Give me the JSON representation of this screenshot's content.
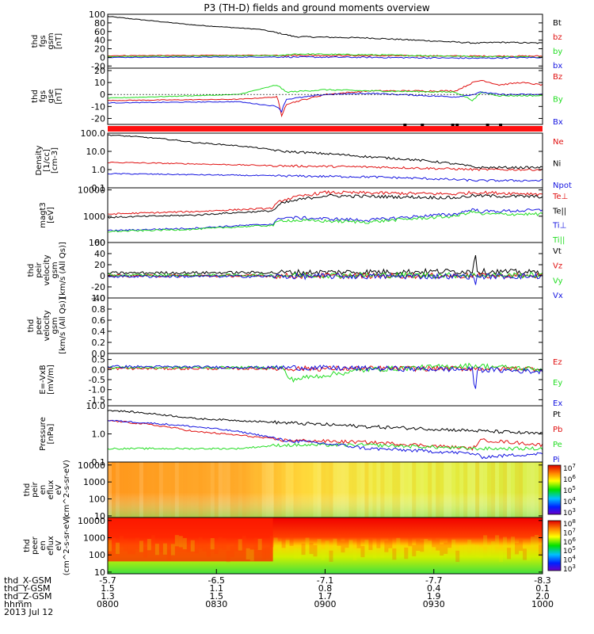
{
  "title": "P3 (TH-D) fields and ground moments overview",
  "colors": {
    "black": "#000000",
    "red": "#e01010",
    "green": "#22dd22",
    "blue": "#1515e0",
    "flag": "#ff1010"
  },
  "chart_data": [
    {
      "type": "line",
      "id": "fgs_gsm",
      "ylabel": [
        "thd",
        "fgs",
        "gsm",
        "[nT]"
      ],
      "ylim": [
        -25,
        100
      ],
      "ticks": [
        -20,
        0,
        20,
        40,
        60,
        80,
        100
      ],
      "tick_labels": [
        "-20",
        "0",
        "20",
        "40",
        "60",
        "80",
        "100"
      ],
      "series": [
        {
          "name": "Bt",
          "color": "#000000",
          "x": [
            0.0,
            0.2,
            0.35,
            0.4,
            0.43,
            0.6,
            0.75,
            0.85,
            0.9,
            1.0
          ],
          "y": [
            95,
            75,
            65,
            55,
            48,
            45,
            38,
            33,
            35,
            33
          ]
        },
        {
          "name": "bz",
          "color": "#e01010",
          "x": [
            0.0,
            0.4,
            0.6,
            0.85,
            1.0
          ],
          "y": [
            4,
            5,
            4,
            3,
            3
          ]
        },
        {
          "name": "by",
          "color": "#22dd22",
          "x": [
            0.0,
            0.4,
            0.43,
            0.6,
            0.85,
            1.0
          ],
          "y": [
            2,
            4,
            8,
            6,
            2,
            1
          ]
        },
        {
          "name": "bx",
          "color": "#1515e0",
          "x": [
            0.0,
            0.4,
            0.6,
            0.85,
            1.0
          ],
          "y": [
            0,
            1,
            0,
            -2,
            0
          ]
        }
      ]
    },
    {
      "type": "line",
      "id": "fgs_gse",
      "ylabel": [
        "thd",
        "fgs",
        "gse",
        "[nT]"
      ],
      "ylim": [
        -25,
        22
      ],
      "ticks": [
        -20,
        -10,
        0,
        10,
        20
      ],
      "tick_labels": [
        "-20",
        "-10",
        "0",
        "10",
        "20"
      ],
      "series": [
        {
          "name": "Bz",
          "color": "#e01010",
          "x": [
            0.0,
            0.3,
            0.39,
            0.4,
            0.41,
            0.5,
            0.6,
            0.8,
            0.84,
            0.86,
            0.9,
            0.95,
            1.0
          ],
          "y": [
            -5,
            -4,
            -2,
            -18,
            -8,
            0,
            3,
            3,
            10,
            12,
            8,
            10,
            8
          ]
        },
        {
          "name": "By",
          "color": "#22dd22",
          "x": [
            0.0,
            0.3,
            0.39,
            0.41,
            0.5,
            0.6,
            0.8,
            0.84,
            0.86,
            0.9,
            1.0
          ],
          "y": [
            -3,
            0,
            8,
            2,
            4,
            3,
            2,
            -5,
            2,
            -1,
            -1
          ]
        },
        {
          "name": "Bx",
          "color": "#1515e0",
          "x": [
            0.0,
            0.3,
            0.39,
            0.4,
            0.41,
            0.5,
            0.6,
            0.8,
            0.84,
            0.86,
            0.9,
            1.0
          ],
          "y": [
            -7,
            -6,
            -10,
            -14,
            -4,
            0,
            1,
            -2,
            0,
            2,
            0,
            0
          ]
        }
      ]
    },
    {
      "type": "line",
      "id": "density",
      "log": true,
      "ylabel": [
        "Density",
        "[1/cc]",
        "[cm-3]"
      ],
      "ylim": [
        0.1,
        100
      ],
      "ticks": [
        0.1,
        1,
        10,
        100
      ],
      "tick_labels": [
        "0.1",
        "1.0",
        "10.0",
        "100.0"
      ],
      "series": [
        {
          "name": "Ne",
          "color": "#e01010",
          "x": [
            0.0,
            0.4,
            0.6,
            0.85,
            1.0
          ],
          "y": [
            2.5,
            1.6,
            1.4,
            1.0,
            1.0
          ]
        },
        {
          "name": "Ni",
          "color": "#000000",
          "x": [
            0.0,
            0.2,
            0.35,
            0.4,
            0.6,
            0.8,
            0.85,
            1.0
          ],
          "y": [
            80,
            30,
            15,
            10,
            5,
            2,
            1.3,
            1.3
          ]
        },
        {
          "name": "Npot",
          "color": "#1515e0",
          "x": [
            0.0,
            0.4,
            0.6,
            0.85,
            1.0
          ],
          "y": [
            0.6,
            0.45,
            0.4,
            0.25,
            0.25
          ]
        }
      ]
    },
    {
      "type": "line",
      "id": "temperature",
      "log": true,
      "ylabel": [
        "magt3",
        "[eV]"
      ],
      "ylim": [
        100,
        12000
      ],
      "ticks": [
        100,
        1000,
        10000
      ],
      "tick_labels": [
        "100",
        "1000",
        "10000"
      ],
      "series": [
        {
          "name": "Te⊥",
          "color": "#e01010",
          "x": [
            0.0,
            0.2,
            0.38,
            0.4,
            0.5,
            0.8,
            0.84,
            1.0
          ],
          "y": [
            1200,
            1500,
            2000,
            4000,
            8000,
            7000,
            8000,
            7000
          ]
        },
        {
          "name": "Te||",
          "color": "#000000",
          "x": [
            0.0,
            0.2,
            0.38,
            0.4,
            0.5,
            0.8,
            0.84,
            1.0
          ],
          "y": [
            900,
            1100,
            1600,
            3000,
            6000,
            5000,
            6000,
            5500
          ]
        },
        {
          "name": "Ti⊥",
          "color": "#1515e0",
          "x": [
            0.0,
            0.2,
            0.38,
            0.4,
            0.6,
            0.8,
            0.84,
            0.86,
            1.0
          ],
          "y": [
            280,
            350,
            500,
            900,
            700,
            1200,
            1800,
            1500,
            1700
          ]
        },
        {
          "name": "Ti||",
          "color": "#22dd22",
          "x": [
            0.0,
            0.2,
            0.38,
            0.4,
            0.6,
            0.8,
            0.84,
            0.86,
            1.0
          ],
          "y": [
            260,
            320,
            450,
            700,
            600,
            1000,
            1500,
            1200,
            1200
          ]
        }
      ]
    },
    {
      "type": "line",
      "id": "velocity_i",
      "ylabel": [
        "thd",
        "peir",
        "velocity",
        "gsm",
        "[km/s (All Qs)]"
      ],
      "ylim": [
        -40,
        60
      ],
      "ticks": [
        -40,
        -20,
        0,
        20,
        40,
        60
      ],
      "tick_labels": [
        "-40",
        "-20",
        "0",
        "20",
        "40",
        "60"
      ],
      "series": [
        {
          "name": "Vt",
          "color": "#000000",
          "x": [
            0.0,
            0.4,
            0.84,
            0.845,
            0.85,
            1.0
          ],
          "y": [
            5,
            6,
            8,
            50,
            8,
            6
          ]
        },
        {
          "name": "Vz",
          "color": "#e01010",
          "x": [
            0.0,
            1.0
          ],
          "y": [
            0,
            0
          ]
        },
        {
          "name": "Vy",
          "color": "#22dd22",
          "x": [
            0.0,
            1.0
          ],
          "y": [
            1,
            1
          ]
        },
        {
          "name": "Vx",
          "color": "#1515e0",
          "x": [
            0.0,
            0.4,
            0.84,
            0.845,
            0.85,
            1.0
          ],
          "y": [
            -1,
            -1,
            -1,
            -15,
            -1,
            -1
          ]
        }
      ]
    },
    {
      "type": "line",
      "id": "velocity_e",
      "ylabel": [
        "thd",
        "peer",
        "velocity",
        "gsm",
        "[km/s (All Qs)]"
      ],
      "ylim": [
        0,
        1
      ],
      "ticks": [
        0,
        0.2,
        0.4,
        0.6,
        0.8,
        1.0
      ],
      "tick_labels": [
        "0.0",
        "0.2",
        "0.4",
        "0.6",
        "0.8",
        "1.0"
      ],
      "series": [
        {
          "name": "Vt",
          "color": "#000000",
          "x": [],
          "y": []
        },
        {
          "name": "Vz",
          "color": "#e01010",
          "x": [],
          "y": []
        },
        {
          "name": "Vy",
          "color": "#22dd22",
          "x": [],
          "y": []
        },
        {
          "name": "Vx",
          "color": "#1515e0",
          "x": [],
          "y": []
        }
      ]
    },
    {
      "type": "line",
      "id": "efield",
      "ylabel": [
        "E=-VxB",
        "[mV/m]"
      ],
      "ylim": [
        -1.8,
        0.8
      ],
      "ticks": [
        -1.5,
        -1.0,
        -0.5,
        0.0,
        0.5
      ],
      "tick_labels": [
        "-1.5",
        "-1.0",
        "-0.5",
        "0.0",
        "0.5"
      ],
      "series": [
        {
          "name": "Ez",
          "color": "#e01010",
          "x": [
            0.0,
            1.0
          ],
          "y": [
            0.05,
            0.05
          ]
        },
        {
          "name": "Ey",
          "color": "#22dd22",
          "x": [
            0.0,
            0.4,
            0.42,
            0.6,
            0.84,
            1.0
          ],
          "y": [
            0.1,
            0.1,
            -0.5,
            0.0,
            0.2,
            0.0
          ]
        },
        {
          "name": "Ex",
          "color": "#1515e0",
          "x": [
            0.0,
            0.4,
            0.84,
            0.845,
            0.85,
            1.0
          ],
          "y": [
            0.15,
            0.1,
            0.0,
            -1.3,
            0.0,
            -0.1
          ]
        }
      ]
    },
    {
      "type": "line",
      "id": "pressure",
      "log": true,
      "ylabel": [
        "Pressure",
        "[nPa]"
      ],
      "ylim": [
        0.1,
        10
      ],
      "ticks": [
        0.1,
        1,
        10
      ],
      "tick_labels": [
        "0.1",
        "1.0",
        "10.0"
      ],
      "series": [
        {
          "name": "Pt",
          "color": "#000000",
          "x": [
            0.0,
            0.2,
            0.4,
            0.6,
            0.84,
            1.0
          ],
          "y": [
            7,
            3.5,
            2.5,
            1.8,
            1.3,
            1.0
          ]
        },
        {
          "name": "Pb",
          "color": "#e01010",
          "x": [
            0.0,
            0.2,
            0.4,
            0.6,
            0.84,
            0.86,
            1.0
          ],
          "y": [
            3,
            1.2,
            0.6,
            0.5,
            0.3,
            0.6,
            0.4
          ]
        },
        {
          "name": "Pe",
          "color": "#22dd22",
          "x": [
            0.0,
            0.3,
            0.4,
            0.6,
            0.84,
            1.0
          ],
          "y": [
            0.3,
            0.3,
            0.4,
            0.4,
            0.3,
            0.3
          ]
        },
        {
          "name": "Pi",
          "color": "#1515e0",
          "x": [
            0.0,
            0.4,
            0.6,
            0.84,
            0.86,
            1.0
          ],
          "y": [
            3,
            0.6,
            0.3,
            0.2,
            0.15,
            0.2
          ]
        }
      ]
    },
    {
      "type": "heatmap",
      "id": "eflux_i",
      "log": true,
      "ylabel": [
        "thd",
        "peir",
        "en",
        "eflux",
        "eV",
        "(cm^2-s-sr-eV)"
      ],
      "ylim": [
        8,
        15000
      ],
      "ticks": [
        10,
        100,
        1000,
        10000
      ],
      "tick_labels": [
        "10",
        "100",
        "1000",
        "10000"
      ],
      "colorbar": {
        "ticks": [
          "10^3",
          "10^4",
          "10^5",
          "10^6",
          "10^7"
        ]
      }
    },
    {
      "type": "heatmap",
      "id": "eflux_e",
      "log": true,
      "ylabel": [
        "thd",
        "peer",
        "en",
        "eflux",
        "eV",
        "(cm^2-s-sr-eV)"
      ],
      "ylim": [
        8,
        15000
      ],
      "ticks": [
        10,
        100,
        1000,
        10000
      ],
      "tick_labels": [
        "10",
        "100",
        "1000",
        "10000"
      ],
      "colorbar": {
        "ticks": [
          "10^3",
          "10^4",
          "10^5",
          "10^6",
          "10^7",
          "10^8"
        ]
      }
    }
  ],
  "time_axis": {
    "rows": [
      {
        "label": "thd_X-GSM",
        "values": [
          "-5.7",
          "-6.5",
          "-7.1",
          "-7.7",
          "-8.3"
        ]
      },
      {
        "label": "thd_Y-GSM",
        "values": [
          "1.5",
          "1.1",
          "0.8",
          "0.4",
          "0.1"
        ]
      },
      {
        "label": "thd_Z-GSM",
        "values": [
          "1.3",
          "1.5",
          "1.7",
          "1.9",
          "2.0"
        ]
      },
      {
        "label": "hhmm",
        "values": [
          "0800",
          "0830",
          "0900",
          "0930",
          "1000"
        ]
      }
    ],
    "date": "2013 Jul 12"
  }
}
